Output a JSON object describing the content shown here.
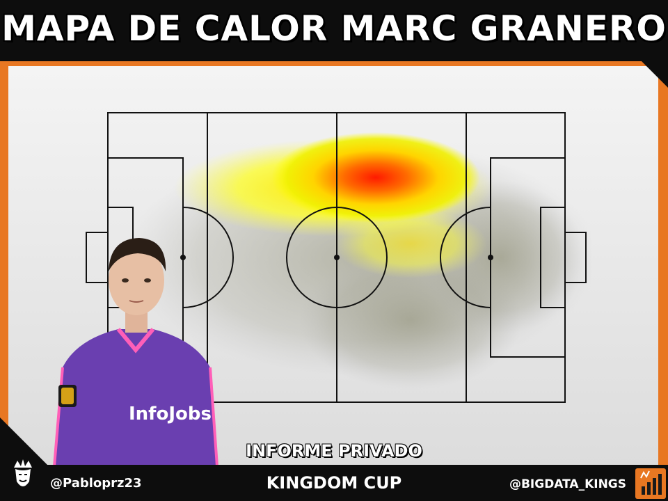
{
  "header": {
    "title": "MAPA DE CALOR MARC GRANERO"
  },
  "pitch": {
    "line_color": "#111111"
  },
  "heatmap": {
    "palette": [
      "#8c8c8c",
      "#ffff00",
      "#ff8c00",
      "#ff0000"
    ]
  },
  "labels": {
    "private_report": "INFORME PRIVADO",
    "competition": "KINGDOM CUP"
  },
  "footer": {
    "left_handle": "@Pabloprz23",
    "right_handle": "@BIGDATA_KINGS"
  },
  "player_kit": {
    "jersey_text": "InfoJobs",
    "jersey_color": "#6a3fb0",
    "trim_color": "#ff5fb8"
  },
  "colors": {
    "accent": "#e87722",
    "background": "#0d0d0d"
  }
}
